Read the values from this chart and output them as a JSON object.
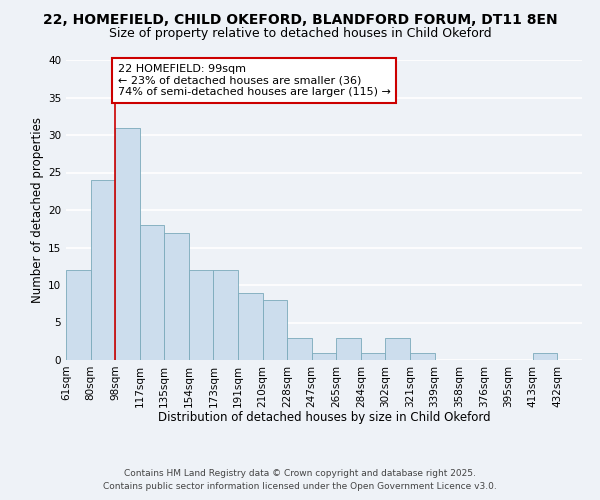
{
  "title": "22, HOMEFIELD, CHILD OKEFORD, BLANDFORD FORUM, DT11 8EN",
  "subtitle": "Size of property relative to detached houses in Child Okeford",
  "xlabel": "Distribution of detached houses by size in Child Okeford",
  "ylabel": "Number of detached properties",
  "bar_color": "#ccdded",
  "bar_edge_color": "#7aaabb",
  "background_color": "#eef2f7",
  "grid_color": "#ffffff",
  "bin_labels": [
    "61sqm",
    "80sqm",
    "98sqm",
    "117sqm",
    "135sqm",
    "154sqm",
    "173sqm",
    "191sqm",
    "210sqm",
    "228sqm",
    "247sqm",
    "265sqm",
    "284sqm",
    "302sqm",
    "321sqm",
    "339sqm",
    "358sqm",
    "376sqm",
    "395sqm",
    "413sqm",
    "432sqm"
  ],
  "values": [
    12,
    24,
    31,
    18,
    17,
    12,
    12,
    9,
    8,
    3,
    1,
    3,
    1,
    3,
    1,
    0,
    0,
    0,
    0,
    1,
    0
  ],
  "ylim": [
    0,
    40
  ],
  "vline_pos": 2,
  "vline_color": "#cc0000",
  "annotation_text": "22 HOMEFIELD: 99sqm\n← 23% of detached houses are smaller (36)\n74% of semi-detached houses are larger (115) →",
  "annotation_box_color": "#ffffff",
  "annotation_box_edge": "#cc0000",
  "footer1": "Contains HM Land Registry data © Crown copyright and database right 2025.",
  "footer2": "Contains public sector information licensed under the Open Government Licence v3.0.",
  "title_fontsize": 10,
  "subtitle_fontsize": 9,
  "axis_label_fontsize": 8.5,
  "tick_fontsize": 7.5,
  "annotation_fontsize": 8,
  "footer_fontsize": 6.5
}
